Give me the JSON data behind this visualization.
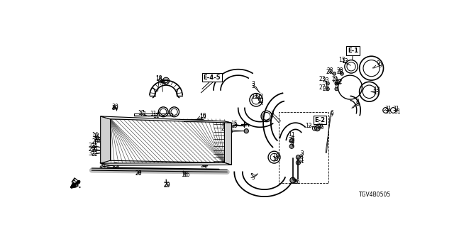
{
  "background_color": "#ffffff",
  "part_number": "TGV4B0505",
  "e_labels": {
    "E-1": [
      0.622,
      0.91
    ],
    "E-2": [
      0.565,
      0.618
    ],
    "E-4-5": [
      0.43,
      0.89
    ]
  }
}
